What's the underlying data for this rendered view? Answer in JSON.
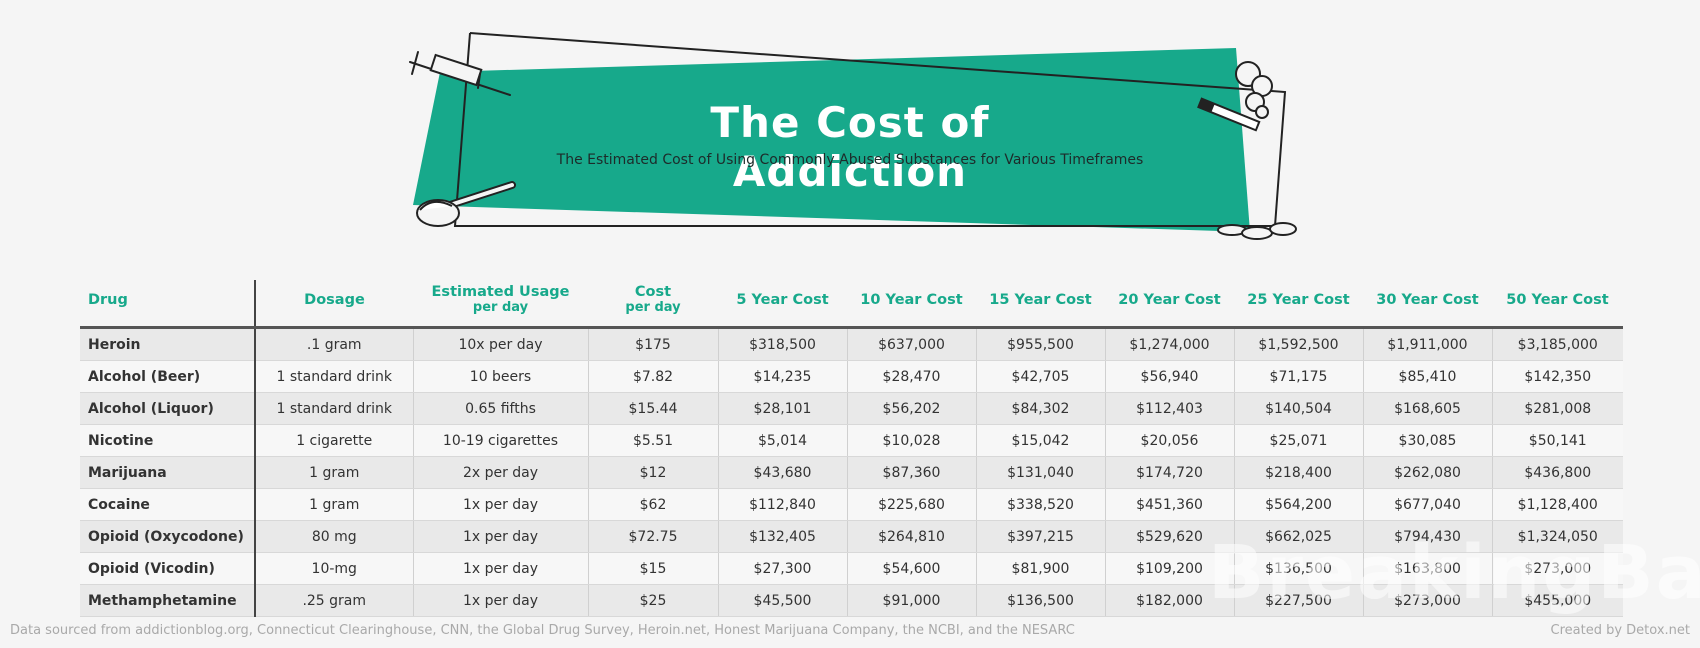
{
  "header": {
    "title": "The Cost of Addiction",
    "subtitle": "The Estimated Cost of Using Commonly Abused Substances for Various Timeframes",
    "accent_color": "#17a98b",
    "icons": [
      "syringe-icon",
      "smoke-icon",
      "cigarette-icon",
      "spoon-icon",
      "pills-icon"
    ]
  },
  "table": {
    "headers": [
      {
        "main": "Drug",
        "sub": ""
      },
      {
        "main": "Dosage",
        "sub": ""
      },
      {
        "main": "Estimated Usage",
        "sub": "per day"
      },
      {
        "main": "Cost",
        "sub": "per day"
      },
      {
        "main": "5 Year Cost",
        "sub": ""
      },
      {
        "main": "10 Year Cost",
        "sub": ""
      },
      {
        "main": "15 Year Cost",
        "sub": ""
      },
      {
        "main": "20 Year Cost",
        "sub": ""
      },
      {
        "main": "25 Year Cost",
        "sub": ""
      },
      {
        "main": "30 Year Cost",
        "sub": ""
      },
      {
        "main": "50 Year Cost",
        "sub": ""
      }
    ],
    "rows": [
      [
        "Heroin",
        ".1 gram",
        "10x per day",
        "$175",
        "$318,500",
        "$637,000",
        "$955,500",
        "$1,274,000",
        "$1,592,500",
        "$1,911,000",
        "$3,185,000"
      ],
      [
        "Alcohol (Beer)",
        "1 standard drink",
        "10 beers",
        "$7.82",
        "$14,235",
        "$28,470",
        "$42,705",
        "$56,940",
        "$71,175",
        "$85,410",
        "$142,350"
      ],
      [
        "Alcohol (Liquor)",
        "1 standard drink",
        "0.65 fifths",
        "$15.44",
        "$28,101",
        "$56,202",
        "$84,302",
        "$112,403",
        "$140,504",
        "$168,605",
        "$281,008"
      ],
      [
        "Nicotine",
        "1 cigarette",
        "10-19 cigarettes",
        "$5.51",
        "$5,014",
        "$10,028",
        "$15,042",
        "$20,056",
        "$25,071",
        "$30,085",
        "$50,141"
      ],
      [
        "Marijuana",
        "1 gram",
        "2x per day",
        "$12",
        "$43,680",
        "$87,360",
        "$131,040",
        "$174,720",
        "$218,400",
        "$262,080",
        "$436,800"
      ],
      [
        "Cocaine",
        "1 gram",
        "1x per day",
        "$62",
        "$112,840",
        "$225,680",
        "$338,520",
        "$451,360",
        "$564,200",
        "$677,040",
        "$1,128,400"
      ],
      [
        "Opioid (Oxycodone)",
        "80 mg",
        "1x per day",
        "$72.75",
        "$132,405",
        "$264,810",
        "$397,215",
        "$529,620",
        "$662,025",
        "$794,430",
        "$1,324,050"
      ],
      [
        "Opioid (Vicodin)",
        "10-mg",
        "1x per day",
        "$15",
        "$27,300",
        "$54,600",
        "$81,900",
        "$109,200",
        "$136,500",
        "$163,800",
        "$273,000"
      ],
      [
        "Methamphetamine",
        ".25 gram",
        "1x per day",
        "$25",
        "$45,500",
        "$91,000",
        "$136,500",
        "$182,000",
        "$227,500",
        "$273,000",
        "$455,000"
      ]
    ]
  },
  "watermark": "BreakingBad",
  "footer": {
    "source": "Data sourced from addictionblog.org, Connecticut Clearinghouse, CNN, the Global Drug Survey, Heroin.net, Honest Marijuana Company, the NCBI, and the NESARC",
    "credit": "Created by Detox.net"
  }
}
